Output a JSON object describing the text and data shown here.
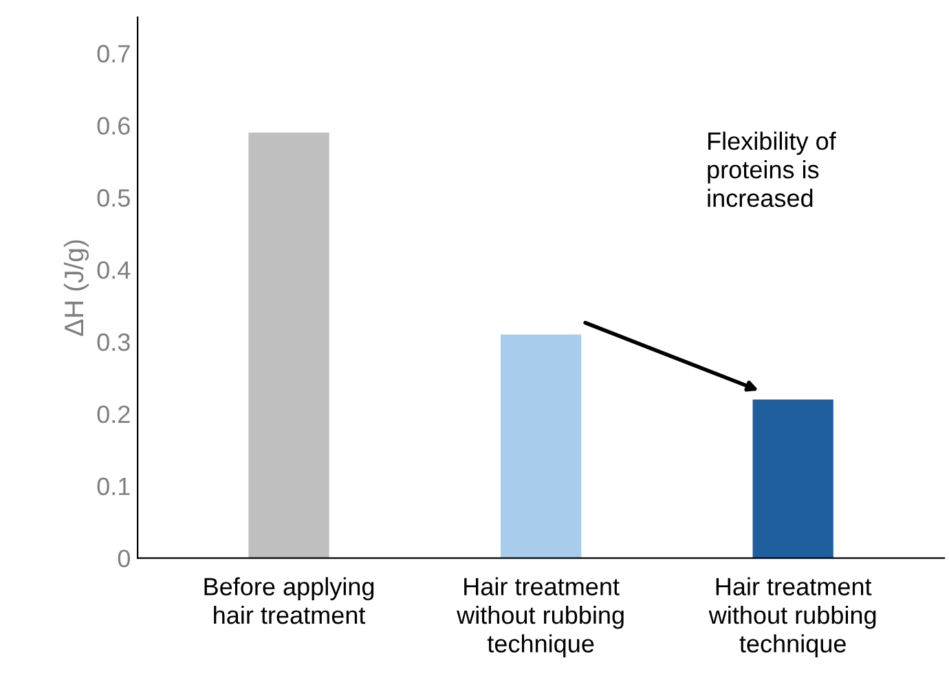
{
  "chart_data": {
    "type": "bar",
    "ylabel": "ΔH (J/g)",
    "categories": [
      "Before applying\nhair treatment",
      "Hair treatment\nwithout rubbing\ntechnique",
      "Hair treatment\nwithout rubbing\ntechnique"
    ],
    "values": [
      0.59,
      0.31,
      0.22
    ],
    "colors": [
      "#bfbfbf",
      "#a9cbec",
      "#1f5f9e"
    ],
    "ylim": [
      0,
      0.75
    ],
    "yticks": [
      0,
      0.1,
      0.2,
      0.3,
      0.4,
      0.5,
      0.6,
      0.7
    ],
    "grid": false,
    "legend": false,
    "annotations": [
      "Flexibility of\nproteins is\nincreased"
    ]
  }
}
